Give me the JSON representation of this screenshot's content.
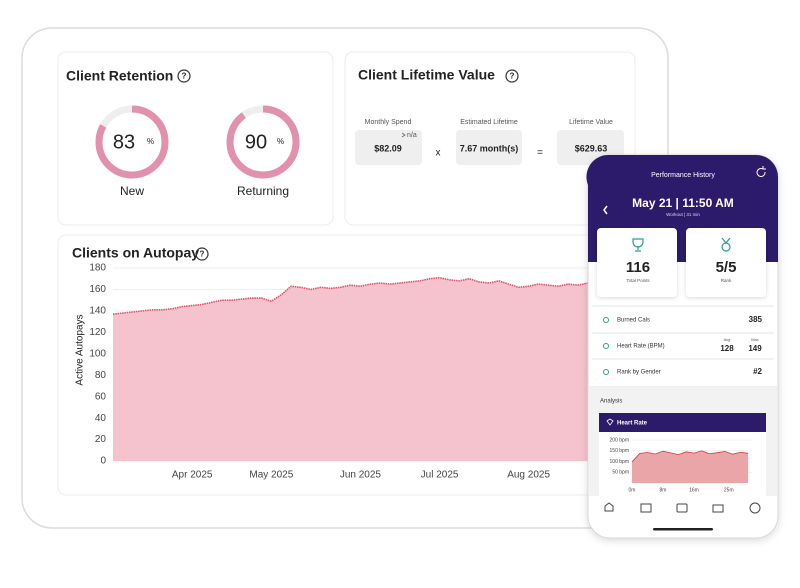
{
  "retention": {
    "title": "Client Retention",
    "help": "?",
    "new": {
      "value": 83,
      "unit": "%",
      "label": "New"
    },
    "returning": {
      "value": 90,
      "unit": "%",
      "label": "Returning"
    }
  },
  "lifetime_value": {
    "title": "Client Lifetime Value",
    "help": "?",
    "monthly_spend": {
      "label": "Monthly Spend",
      "note": "n/a",
      "value": "$82.09"
    },
    "times": "x",
    "estimated_lifetime": {
      "label": "Estimated Lifetime",
      "value": "7.67 month(s)"
    },
    "equals": "=",
    "lifetime_value": {
      "label": "Lifetime Value",
      "value": "$629.63"
    }
  },
  "autopay_help": "?",
  "chart_data": [
    {
      "type": "area",
      "title": "Clients on Autopay",
      "y_label": "Active Autopays",
      "categories": [
        null,
        null,
        null,
        null,
        null,
        null,
        null,
        null,
        "Apr 2025",
        null,
        null,
        null,
        null,
        null,
        null,
        null,
        "May 2025",
        null,
        null,
        null,
        null,
        null,
        null,
        null,
        null,
        "Jun 2025",
        null,
        null,
        null,
        null,
        null,
        null,
        null,
        "Jul 2025",
        null,
        null,
        null,
        null,
        null,
        null,
        null,
        null,
        "Aug 2025",
        null,
        null,
        null,
        null,
        null,
        null
      ],
      "series": [
        {
          "name": "Active Autopays",
          "color": "#d9546e",
          "fill": "#f5c3cd",
          "values": [
            137,
            138,
            139,
            140,
            141,
            141,
            142,
            144,
            145,
            146,
            148,
            150,
            150,
            151,
            152,
            152,
            149,
            155,
            163,
            162,
            160,
            162,
            161,
            162,
            164,
            163,
            165,
            166,
            165,
            166,
            167,
            168,
            170,
            171,
            169,
            168,
            170,
            167,
            166,
            168,
            165,
            162,
            163,
            165,
            164,
            163,
            165,
            164,
            166
          ]
        }
      ],
      "ylim": [
        0,
        180
      ],
      "yticks": [
        0,
        20,
        40,
        60,
        80,
        100,
        120,
        140,
        160,
        180
      ],
      "grid": true
    },
    {
      "type": "area",
      "title": "Heart Rate",
      "x": [
        0,
        2,
        4,
        6,
        8,
        10,
        12,
        14,
        16,
        18,
        20,
        22,
        24,
        26,
        28,
        30
      ],
      "series": [
        {
          "name": "Heart Rate",
          "color": "#d23c3c",
          "fill": "#eaa5a8",
          "values": [
            98,
            138,
            142,
            135,
            148,
            140,
            132,
            145,
            139,
            150,
            136,
            141,
            147,
            134,
            143,
            138
          ]
        }
      ],
      "xlim": [
        0,
        31
      ],
      "xticks": [
        {
          "value": 0,
          "label": "0m"
        },
        {
          "value": 8,
          "label": "8m"
        },
        {
          "value": 16,
          "label": "16m"
        },
        {
          "value": 25,
          "label": "25m"
        }
      ],
      "ylim": [
        0,
        200
      ],
      "yticks": [
        {
          "value": 50,
          "label": "50 bpm"
        },
        {
          "value": 100,
          "label": "100 bpm"
        },
        {
          "value": 150,
          "label": "150 bpm"
        },
        {
          "value": 200,
          "label": "200 bpm"
        }
      ],
      "grid": true
    }
  ],
  "phone": {
    "header": "Performance History",
    "date": "May 21 | 11:50 AM",
    "workout": "Workout | 31 min",
    "points": {
      "value": "116",
      "label": "Total Points"
    },
    "rank": {
      "value": "5/5",
      "label": "Rank"
    },
    "rows": [
      {
        "label": "Burned Cals",
        "value": "385"
      },
      {
        "label": "Heart Rate (BPM)",
        "avg_label": "Avg",
        "avg": "128",
        "max_label": "Max",
        "max": "149"
      },
      {
        "label": "Rank by Gender",
        "value": "#2"
      }
    ],
    "analysis": "Analysis"
  }
}
